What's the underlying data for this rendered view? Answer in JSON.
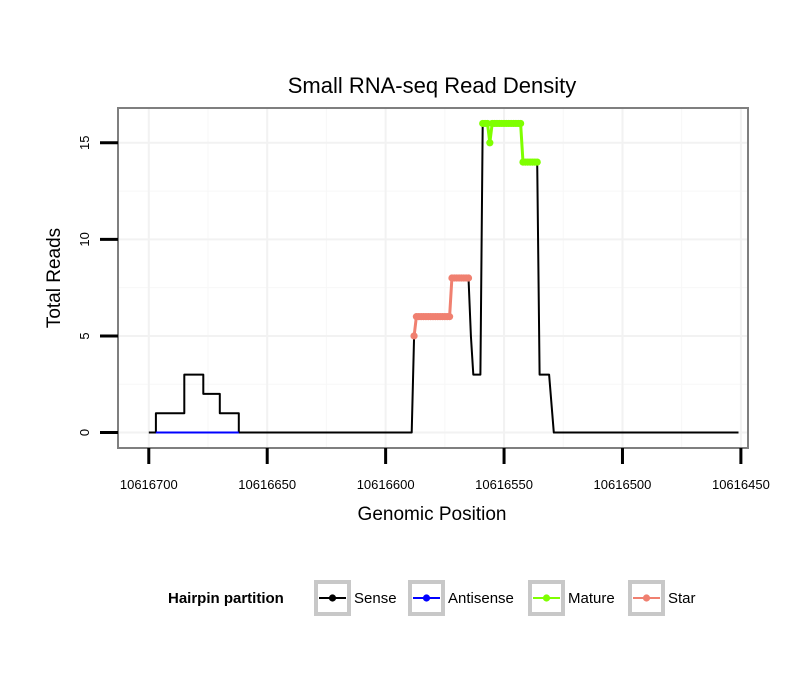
{
  "chart_data": {
    "type": "line",
    "title": "Small RNA-seq Read Density",
    "xlabel": "Genomic Position",
    "ylabel": "Total Reads",
    "xlim": [
      10616713,
      10616447
    ],
    "x_reversed": true,
    "ylim": [
      -0.8,
      16.8
    ],
    "x_ticks": [
      10616700,
      10616650,
      10616600,
      10616550,
      10616500,
      10616450
    ],
    "x_tick_labels": [
      "10616700",
      "10616650",
      "10616600",
      "10616550",
      "10616500",
      "10616450"
    ],
    "y_ticks": [
      0,
      5,
      10,
      15
    ],
    "y_tick_labels": [
      "0",
      "5",
      "10",
      "15"
    ],
    "grid": true,
    "legend": {
      "title": "Hairpin partition",
      "position": "bottom",
      "entries": [
        {
          "label": "Sense",
          "color": "#000000"
        },
        {
          "label": "Antisense",
          "color": "#0000ff"
        },
        {
          "label": "Mature",
          "color": "#7fff00"
        },
        {
          "label": "Star",
          "color": "#f08070"
        }
      ]
    },
    "series": [
      {
        "name": "Sense",
        "color": "#000000",
        "points": [
          [
            10616700,
            0
          ],
          [
            10616697,
            0
          ],
          [
            10616697,
            1
          ],
          [
            10616685,
            1
          ],
          [
            10616685,
            3
          ],
          [
            10616677,
            3
          ],
          [
            10616677,
            2
          ],
          [
            10616670,
            2
          ],
          [
            10616670,
            1
          ],
          [
            10616662,
            1
          ],
          [
            10616662,
            0
          ],
          [
            10616589,
            0
          ],
          [
            10616588,
            5
          ],
          [
            10616587,
            6
          ],
          [
            10616573,
            6
          ],
          [
            10616572,
            8
          ],
          [
            10616565,
            8
          ],
          [
            10616564,
            5
          ],
          [
            10616563,
            3
          ],
          [
            10616560,
            3
          ],
          [
            10616559,
            16
          ],
          [
            10616557,
            16
          ],
          [
            10616556,
            15
          ],
          [
            10616555,
            16
          ],
          [
            10616543,
            16
          ],
          [
            10616542,
            14
          ],
          [
            10616536,
            14
          ],
          [
            10616535,
            3
          ],
          [
            10616531,
            3
          ],
          [
            10616529,
            0
          ],
          [
            10616451,
            0
          ]
        ]
      },
      {
        "name": "Antisense",
        "color": "#0000ff",
        "points": [
          [
            10616697,
            0
          ],
          [
            10616662,
            0
          ]
        ]
      },
      {
        "name": "Mature",
        "color": "#7fff00",
        "points": [
          [
            10616559,
            16
          ],
          [
            10616558,
            16
          ],
          [
            10616557,
            16
          ],
          [
            10616556,
            15
          ],
          [
            10616555,
            16
          ],
          [
            10616554,
            16
          ],
          [
            10616553,
            16
          ],
          [
            10616552,
            16
          ],
          [
            10616551,
            16
          ],
          [
            10616550,
            16
          ],
          [
            10616549,
            16
          ],
          [
            10616548,
            16
          ],
          [
            10616547,
            16
          ],
          [
            10616546,
            16
          ],
          [
            10616545,
            16
          ],
          [
            10616544,
            16
          ],
          [
            10616543,
            16
          ],
          [
            10616542,
            14
          ],
          [
            10616541,
            14
          ],
          [
            10616540,
            14
          ],
          [
            10616539,
            14
          ],
          [
            10616538,
            14
          ],
          [
            10616537,
            14
          ],
          [
            10616536,
            14
          ]
        ]
      },
      {
        "name": "Star",
        "color": "#f08070",
        "points": [
          [
            10616588,
            5
          ],
          [
            10616587,
            6
          ],
          [
            10616586,
            6
          ],
          [
            10616585,
            6
          ],
          [
            10616584,
            6
          ],
          [
            10616583,
            6
          ],
          [
            10616582,
            6
          ],
          [
            10616581,
            6
          ],
          [
            10616580,
            6
          ],
          [
            10616579,
            6
          ],
          [
            10616578,
            6
          ],
          [
            10616577,
            6
          ],
          [
            10616576,
            6
          ],
          [
            10616575,
            6
          ],
          [
            10616574,
            6
          ],
          [
            10616573,
            6
          ],
          [
            10616572,
            8
          ],
          [
            10616571,
            8
          ],
          [
            10616570,
            8
          ],
          [
            10616569,
            8
          ],
          [
            10616568,
            8
          ],
          [
            10616567,
            8
          ],
          [
            10616566,
            8
          ],
          [
            10616565,
            8
          ]
        ]
      }
    ]
  }
}
